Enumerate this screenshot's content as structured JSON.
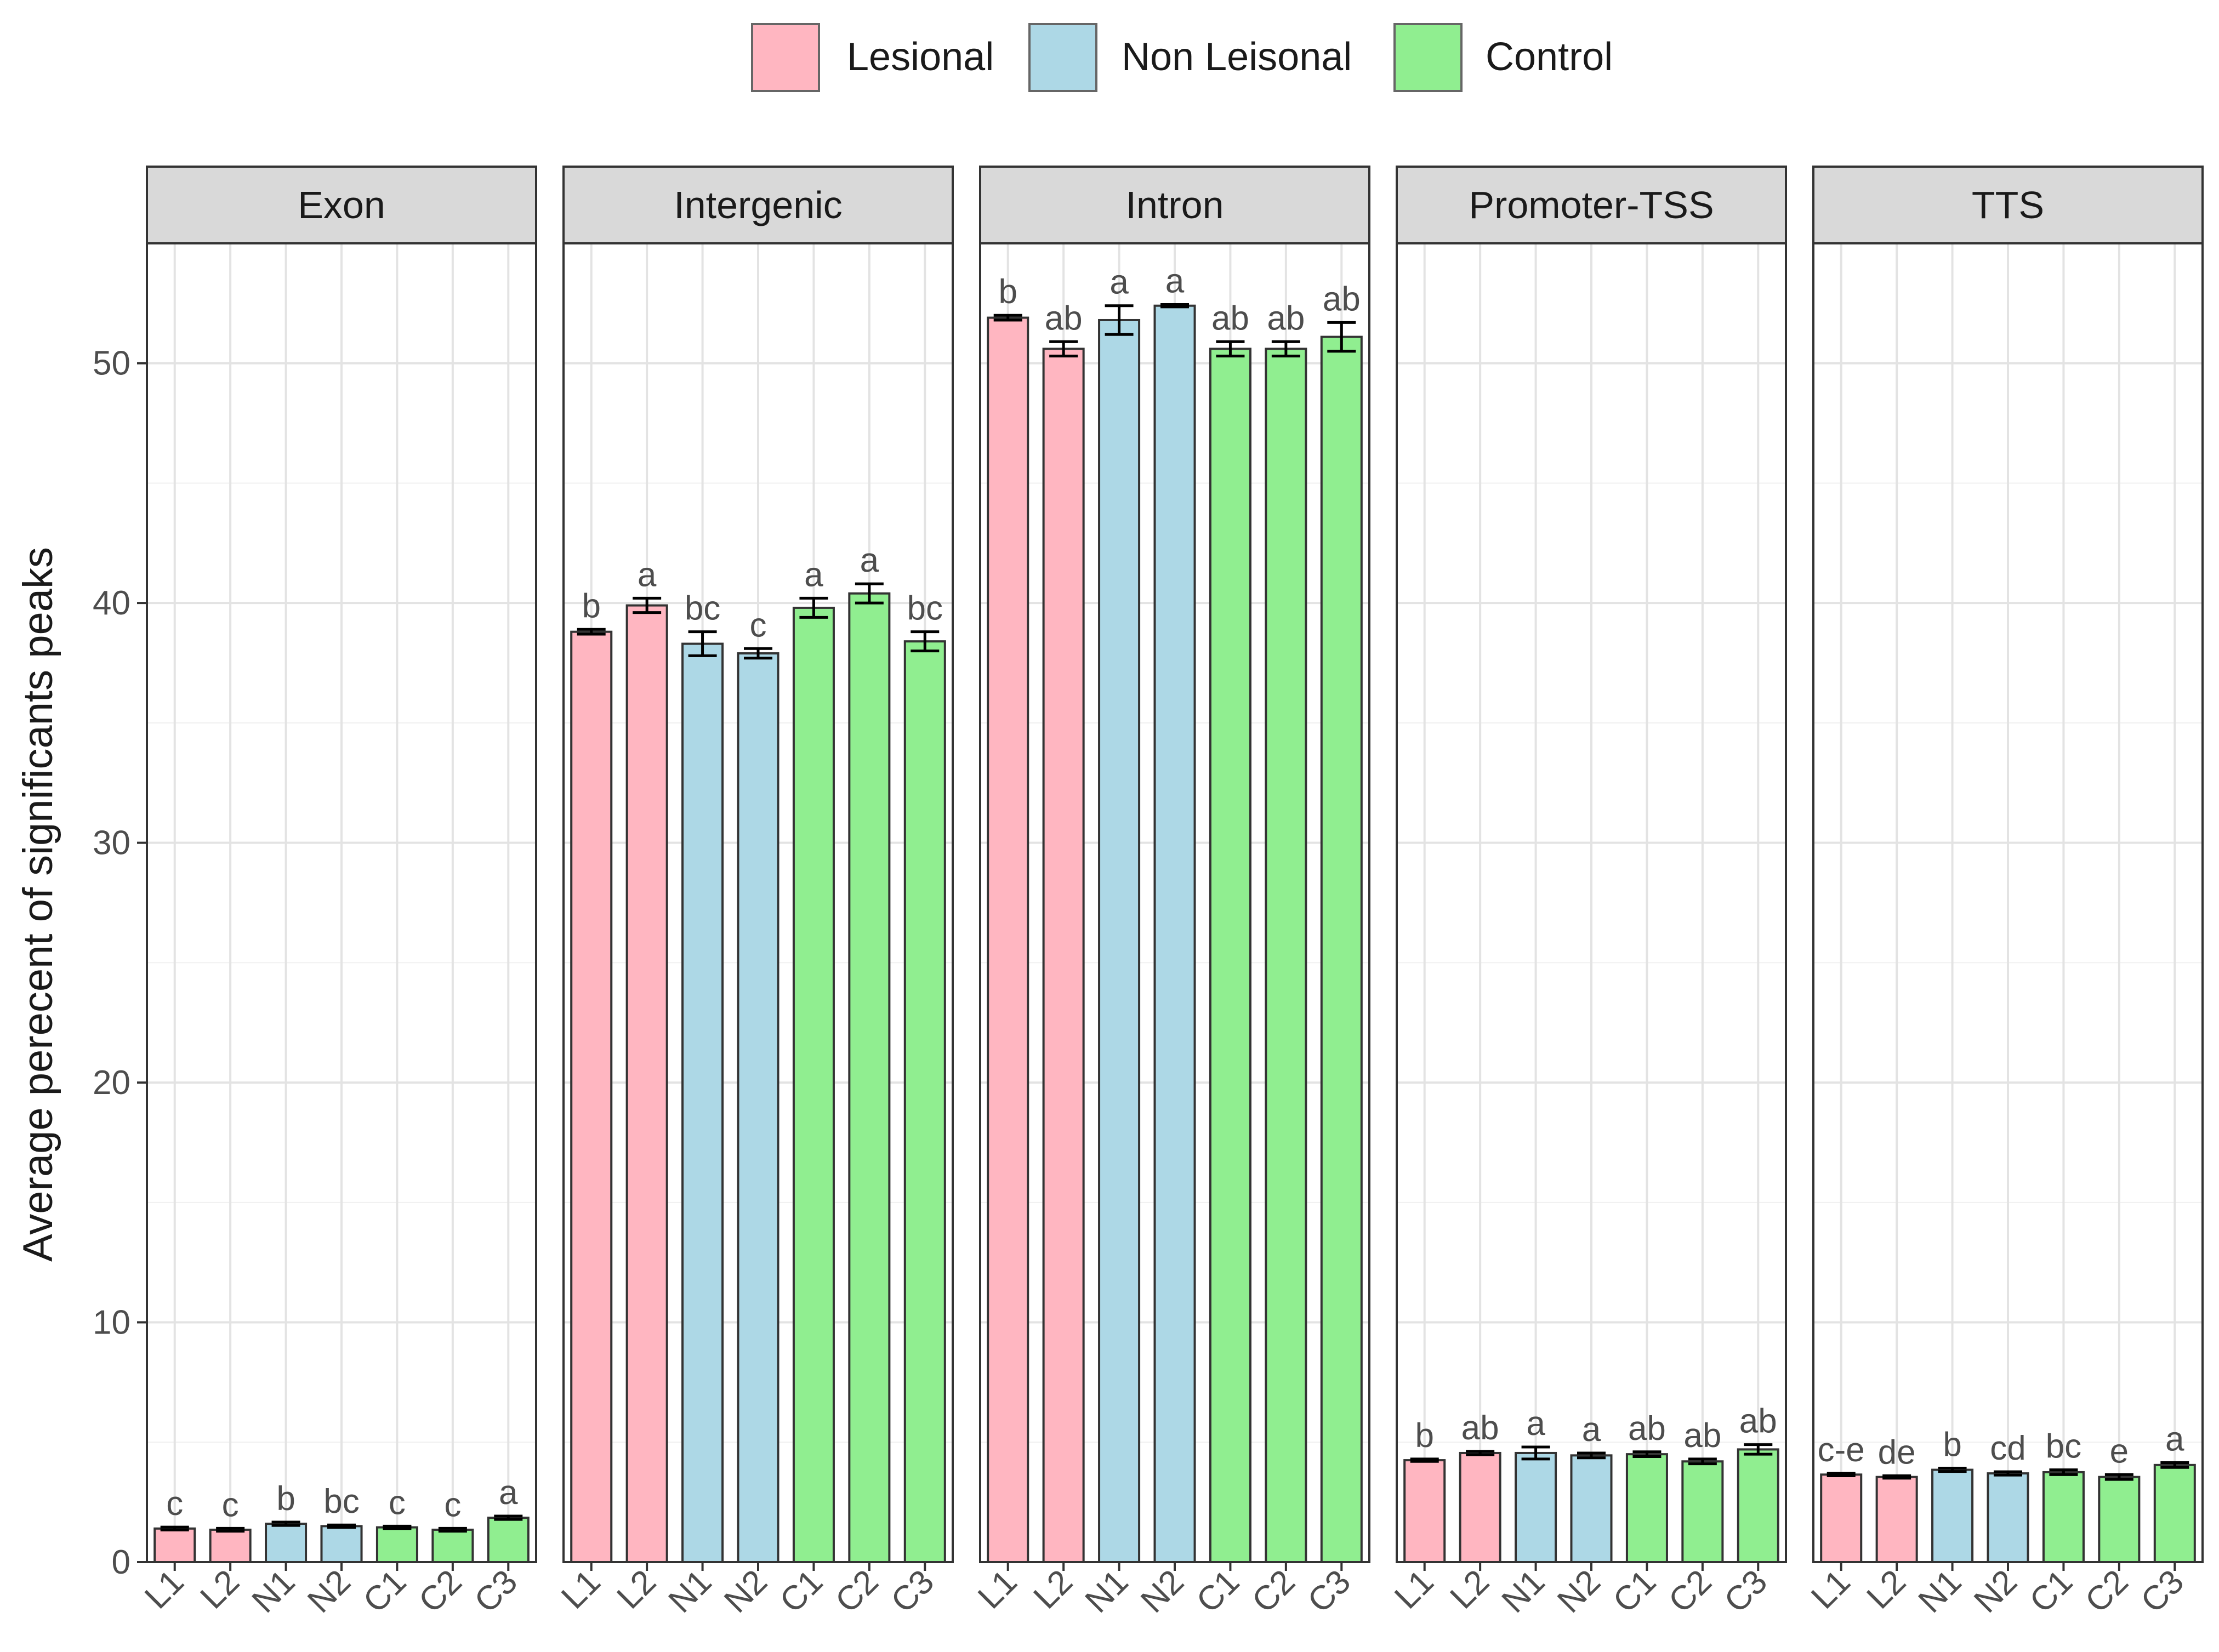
{
  "chart_data": {
    "type": "bar",
    "ylabel": "Average perecent of significants peaks",
    "xlabel": "",
    "ylim": [
      0,
      55
    ],
    "yticks": [
      0,
      10,
      20,
      30,
      40,
      50
    ],
    "categories": [
      "L1",
      "L2",
      "N1",
      "N2",
      "C1",
      "C2",
      "C3"
    ],
    "groups": [
      "Lesional",
      "Lesional",
      "Non Leisonal",
      "Non Leisonal",
      "Control",
      "Control",
      "Control"
    ],
    "legend": [
      {
        "name": "Lesional",
        "color": "#FFB6C1"
      },
      {
        "name": "Non Leisonal",
        "color": "#ADD8E6"
      },
      {
        "name": "Control",
        "color": "#90EE90"
      }
    ],
    "legend_position": "top",
    "grid": true,
    "facets": [
      {
        "title": "Exon",
        "values": [
          1.4,
          1.35,
          1.6,
          1.5,
          1.45,
          1.35,
          1.85
        ],
        "errors": [
          0.06,
          0.06,
          0.07,
          0.05,
          0.05,
          0.06,
          0.07
        ],
        "labels": [
          "c",
          "c",
          "b",
          "bc",
          "c",
          "c",
          "a"
        ]
      },
      {
        "title": "Intergenic",
        "values": [
          38.8,
          39.9,
          38.3,
          37.9,
          39.8,
          40.4,
          38.4
        ],
        "errors": [
          0.1,
          0.3,
          0.5,
          0.2,
          0.4,
          0.4,
          0.4
        ],
        "labels": [
          "b",
          "a",
          "bc",
          "c",
          "a",
          "a",
          "bc"
        ]
      },
      {
        "title": "Intron",
        "values": [
          51.9,
          50.6,
          51.8,
          52.4,
          50.6,
          50.6,
          51.1
        ],
        "errors": [
          0.1,
          0.3,
          0.6,
          0.05,
          0.3,
          0.3,
          0.6
        ],
        "labels": [
          "b",
          "ab",
          "a",
          "a",
          "ab",
          "ab",
          "ab"
        ]
      },
      {
        "title": "Promoter-TSS",
        "values": [
          4.25,
          4.55,
          4.55,
          4.45,
          4.5,
          4.2,
          4.7
        ],
        "errors": [
          0.05,
          0.07,
          0.25,
          0.1,
          0.1,
          0.1,
          0.2
        ],
        "labels": [
          "b",
          "ab",
          "a",
          "a",
          "ab",
          "ab",
          "ab"
        ]
      },
      {
        "title": "TTS",
        "values": [
          3.65,
          3.55,
          3.85,
          3.7,
          3.75,
          3.55,
          4.05
        ],
        "errors": [
          0.05,
          0.05,
          0.07,
          0.07,
          0.1,
          0.1,
          0.1
        ],
        "labels": [
          "c-e",
          "de",
          "b",
          "cd",
          "bc",
          "e",
          "a"
        ]
      }
    ]
  }
}
